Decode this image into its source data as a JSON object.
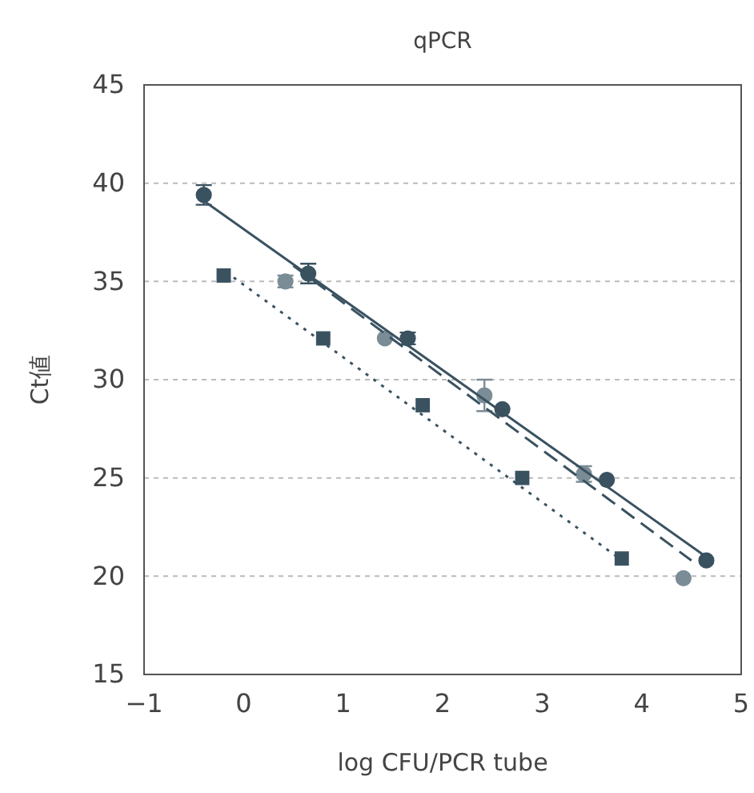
{
  "chart_data": {
    "type": "scatter",
    "title": "qPCR",
    "xlabel": "log CFU/PCR tube",
    "ylabel": "Ct値",
    "xlim": [
      -1,
      5
    ],
    "xticks": [
      {
        "value": -1,
        "label": "−1"
      },
      0,
      1,
      2,
      3,
      4,
      5
    ],
    "ylim": [
      15,
      45
    ],
    "yticks": [
      15,
      20,
      25,
      30,
      35,
      40,
      45
    ],
    "grid": "y",
    "series": [
      {
        "marker": "circle",
        "color": "#3a5260",
        "x": [
          -0.4,
          0.65,
          1.65,
          2.6,
          3.65,
          4.65
        ],
        "values": [
          39.4,
          35.4,
          32.1,
          28.5,
          24.9,
          20.8
        ],
        "errors": [
          0.5,
          0.5,
          0.3,
          null,
          null,
          null
        ]
      },
      {
        "marker": "circle",
        "color": "#7a8c96",
        "x": [
          0.42,
          1.42,
          2.42,
          3.42,
          4.42
        ],
        "values": [
          35.0,
          32.1,
          29.2,
          25.2,
          19.9
        ],
        "errors": [
          0.3,
          null,
          0.8,
          0.4,
          null
        ]
      },
      {
        "marker": "square",
        "color": "#3a5260",
        "x": [
          -0.2,
          0.8,
          1.8,
          2.8,
          3.8
        ],
        "values": [
          35.3,
          32.1,
          28.7,
          25.0,
          20.9
        ]
      },
      {
        "type": "line",
        "line_style": "solid",
        "color": "#3a5260",
        "x": [
          -0.4,
          4.7
        ],
        "values": [
          39.1,
          20.8
        ]
      },
      {
        "type": "line",
        "line_style": "dashed",
        "color": "#3a5260",
        "x": [
          0.5,
          4.5
        ],
        "values": [
          35.8,
          20.8
        ]
      },
      {
        "type": "line",
        "line_style": "dotted",
        "color": "#3a5260",
        "x": [
          -0.1,
          3.75
        ],
        "values": [
          35.2,
          21.0
        ]
      }
    ]
  }
}
